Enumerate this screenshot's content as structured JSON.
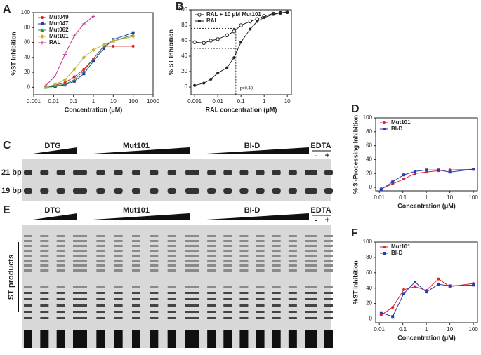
{
  "chart_data": [
    {
      "type": "line",
      "label": "A",
      "xlabel": "Concentration (μM)",
      "ylabel": "%ST Inhibition",
      "xscale": "log",
      "legend": "upper left",
      "x": [
        0.004,
        0.012,
        0.037,
        0.11,
        0.33,
        1,
        3.3,
        10,
        100
      ],
      "xlim": [
        0.001,
        1000
      ],
      "xticks": [
        0.001,
        0.01,
        0.1,
        1,
        10,
        100,
        1000
      ],
      "ylim": [
        -10,
        100
      ],
      "yticks": [
        0,
        20,
        40,
        60,
        80,
        100
      ],
      "series": [
        {
          "name": "Mut049",
          "color": "#e0202a",
          "marker": "circle",
          "values": [
            0,
            3,
            6,
            14,
            24,
            38,
            55,
            55,
            55
          ]
        },
        {
          "name": "Mut047",
          "color": "#2a3a9a",
          "marker": "square",
          "values": [
            0,
            1,
            3,
            8,
            18,
            35,
            52,
            64,
            73
          ]
        },
        {
          "name": "Mut062",
          "color": "#2e8b57",
          "marker": "triangle",
          "values": [
            0,
            2,
            4,
            10,
            22,
            38,
            55,
            62,
            70
          ]
        },
        {
          "name": "Mut101",
          "color": "#c8b030",
          "marker": "diamond",
          "values": [
            0,
            4,
            10,
            24,
            40,
            50,
            57,
            62,
            68
          ]
        },
        {
          "name": "RAL",
          "color": "#c03090",
          "marker": "cross",
          "values": [
            2,
            15,
            44,
            69,
            85,
            95,
            null,
            null,
            null
          ]
        }
      ]
    },
    {
      "type": "line",
      "label": "B",
      "xlabel": "RAL concentration (μM)",
      "ylabel": "% ST Inhibition",
      "xscale": "log",
      "legend": "upper left",
      "annotation": "p=0.48",
      "x": [
        0.001,
        0.0025,
        0.005,
        0.01,
        0.025,
        0.05,
        0.1,
        0.25,
        0.5,
        1,
        2.5,
        5,
        10
      ],
      "xlim": [
        0.0007,
        15
      ],
      "xticks": [
        0.001,
        0.01,
        0.1,
        1,
        10
      ],
      "ylim": [
        -10,
        100
      ],
      "yticks": [
        0,
        20,
        40,
        60,
        80,
        100
      ],
      "series": [
        {
          "name": "RAL + 10 μM Mut101",
          "color": "#222222",
          "marker": "open-circle",
          "values": [
            58,
            57,
            60,
            62,
            67,
            72,
            80,
            85,
            88,
            92,
            95,
            96,
            97
          ]
        },
        {
          "name": "RAL",
          "color": "#222222",
          "marker": "circle",
          "values": [
            2,
            5,
            10,
            18,
            25,
            38,
            58,
            75,
            85,
            90,
            94,
            96,
            97
          ]
        }
      ]
    },
    {
      "type": "line",
      "label": "D",
      "xlabel": "Concentration (μM)",
      "ylabel": "% 3'-Processing Inhibition",
      "xscale": "log",
      "legend": "upper left",
      "x": [
        0.012,
        0.037,
        0.11,
        0.33,
        1,
        3.3,
        10,
        100
      ],
      "xlim": [
        0.007,
        150
      ],
      "xticks": [
        0.01,
        0.1,
        1,
        10,
        100
      ],
      "ylim": [
        -5,
        100
      ],
      "yticks": [
        0,
        20,
        40,
        60,
        80,
        100
      ],
      "series": [
        {
          "name": "Mut101",
          "color": "#e0202a",
          "marker": "circle",
          "values": [
            -2,
            5,
            12,
            20,
            22,
            24,
            25,
            26
          ]
        },
        {
          "name": "BI-D",
          "color": "#2a3aaa",
          "marker": "square",
          "values": [
            -3,
            8,
            18,
            23,
            25,
            25,
            22,
            26
          ]
        }
      ]
    },
    {
      "type": "line",
      "label": "F",
      "xlabel": "Concentration (μM)",
      "ylabel": "%ST Inhibition",
      "xscale": "log",
      "legend": "upper left",
      "x": [
        0.012,
        0.037,
        0.11,
        0.33,
        1,
        3.3,
        10,
        100
      ],
      "xlim": [
        0.007,
        150
      ],
      "xticks": [
        0.01,
        0.1,
        1,
        10,
        100
      ],
      "ylim": [
        -5,
        100
      ],
      "yticks": [
        0,
        20,
        40,
        60,
        80,
        100
      ],
      "series": [
        {
          "name": "Mut101",
          "color": "#e0202a",
          "marker": "circle",
          "values": [
            5,
            15,
            38,
            42,
            37,
            52,
            42,
            46
          ]
        },
        {
          "name": "BI-D",
          "color": "#2a3aaa",
          "marker": "square",
          "values": [
            8,
            3,
            33,
            48,
            35,
            45,
            43,
            44
          ]
        }
      ]
    }
  ],
  "gels": [
    {
      "label": "C",
      "groups": [
        "DTG",
        "Mut101",
        "BI-D",
        "EDTA"
      ],
      "controls": [
        "-",
        "+"
      ],
      "bands": [
        "21 bp",
        "19 bp"
      ]
    },
    {
      "label": "E",
      "groups": [
        "DTG",
        "Mut101",
        "BI-D",
        "EDTA"
      ],
      "controls": [
        "-",
        "+"
      ],
      "side_label": "ST products"
    }
  ]
}
